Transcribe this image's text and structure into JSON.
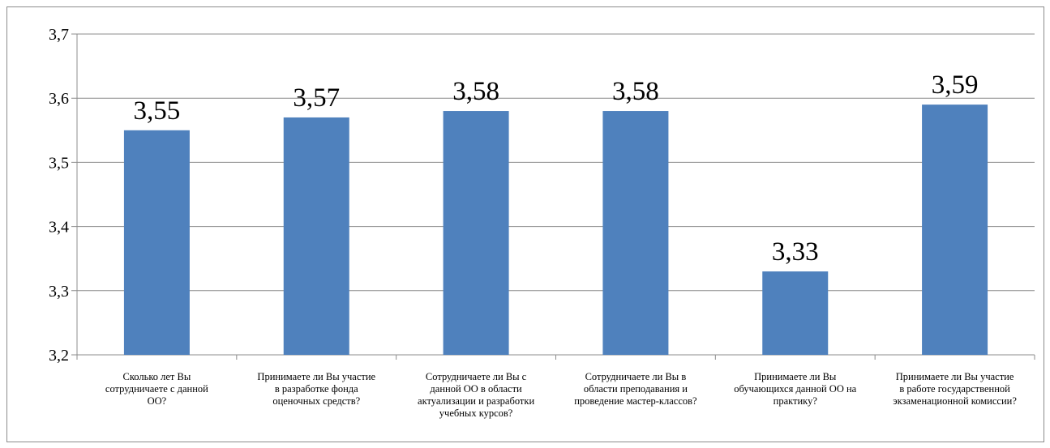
{
  "chart_data": {
    "type": "bar",
    "title": "",
    "xlabel": "",
    "ylabel": "",
    "ylim": [
      3.2,
      3.7
    ],
    "yticks": [
      "3,2",
      "3,3",
      "3,4",
      "3,5",
      "3,6",
      "3,7"
    ],
    "grid": true,
    "legend": "none",
    "categories": [
      "Сколько лет Вы сотрудничаете с данной ОО?",
      "Принимаете ли Вы участие в разработке фонда оценочных средств?",
      "Сотрудничаете ли Вы с данной ОО в области актуализации и разработки учебных курсов?",
      "Сотрудничаете ли Вы в области преподавания и проведение мастер-классов?",
      "Принимаете ли Вы обучающихся данной ОО на практику?",
      "Принимаете ли Вы участие в работе государственной экзаменационной комиссии?"
    ],
    "category_lines": [
      [
        "Сколько лет Вы",
        "сотрудничаете с данной",
        "ОО?"
      ],
      [
        "Принимаете ли Вы участие",
        "в разработке фонда",
        "оценочных средств?"
      ],
      [
        "Сотрудничаете ли Вы с",
        "данной ОО в области",
        "актуализации и разработки",
        "учебных курсов?"
      ],
      [
        "Сотрудничаете ли Вы в",
        "области преподавания и",
        "проведение мастер-классов?"
      ],
      [
        "Принимаете ли Вы",
        "обучающихся данной ОО на",
        "практику?"
      ],
      [
        "Принимаете ли Вы участие",
        "в работе государственной",
        "экзаменационной комиссии?"
      ]
    ],
    "values": [
      3.55,
      3.57,
      3.58,
      3.58,
      3.33,
      3.59
    ],
    "data_labels": [
      "3,55",
      "3,57",
      "3,58",
      "3,58",
      "3,33",
      "3,59"
    ],
    "bar_color": "#4f81bd",
    "grid_color": "#8c8c8c"
  }
}
